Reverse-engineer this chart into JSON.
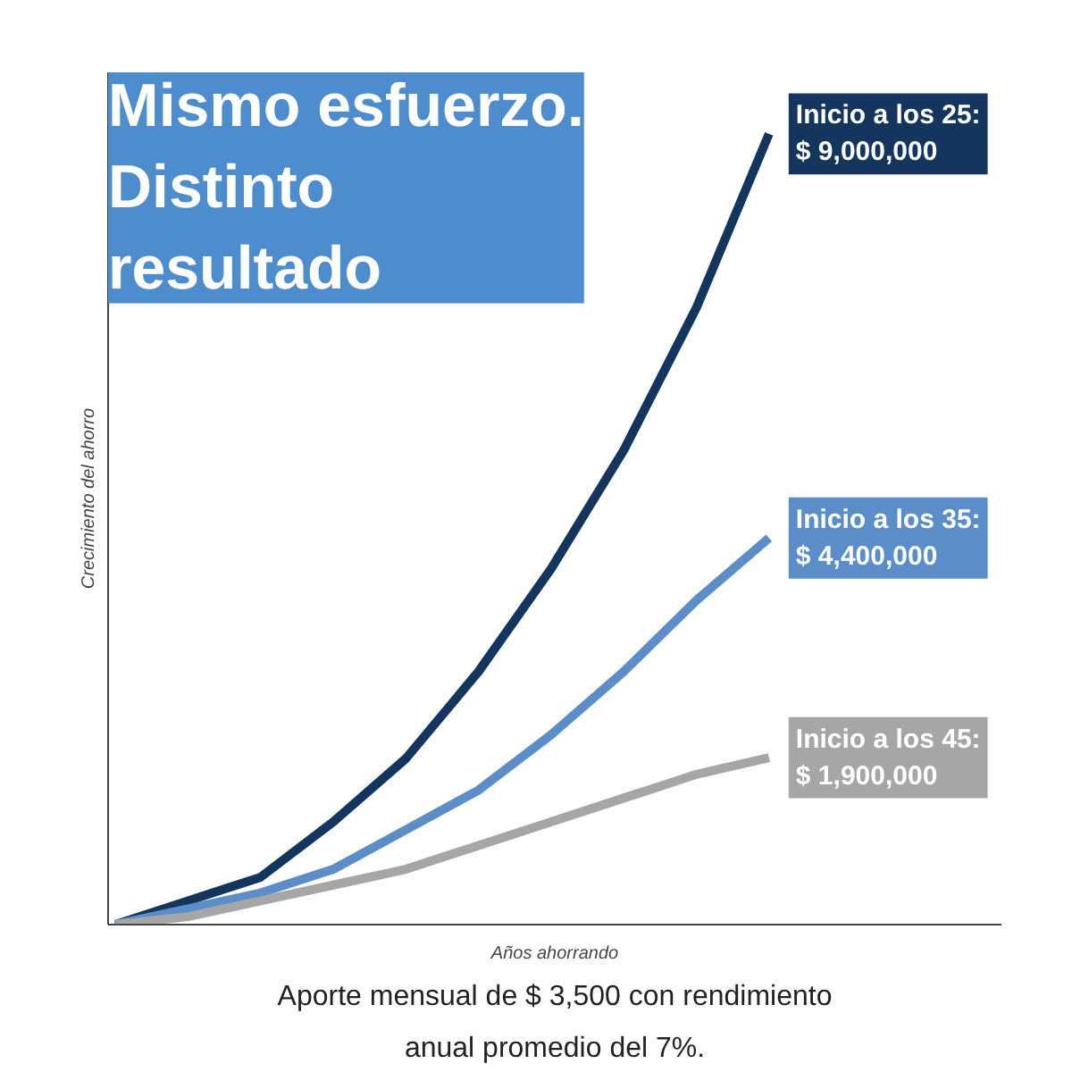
{
  "chart_data": {
    "type": "line",
    "title": "Mismo esfuerzo. Distinto resultado",
    "xlabel": "Años ahorrando",
    "ylabel": "Crecimiento del ahorro",
    "annotations": [
      "Aporte mensual de $ 3,500 con rendimiento anual promedio del 7%."
    ],
    "categories": [
      null,
      null,
      null,
      null,
      null,
      null,
      null,
      null,
      null,
      null
    ],
    "ylim": [
      0,
      9700000
    ],
    "marker": "none",
    "series": [
      {
        "name": "Inicio a los 25:",
        "color": "#14365e",
        "values": [
          0,
          270000,
          540000,
          1170000,
          1890000,
          2880000,
          4050000,
          5400000,
          7020000,
          9000000
        ],
        "value_labels": [
          null,
          null,
          null,
          null,
          null,
          null,
          null,
          null,
          null,
          "$ 9,000,000"
        ]
      },
      {
        "name": "Inicio a los 35:",
        "color": "#5b8ec9",
        "values": [
          0,
          180000,
          360000,
          630000,
          1080000,
          1530000,
          2160000,
          2880000,
          3690000,
          4400000
        ],
        "value_labels": [
          null,
          null,
          null,
          null,
          null,
          null,
          null,
          null,
          null,
          "$ 4,400,000"
        ]
      },
      {
        "name": "Inicio a los 45:",
        "color": "#a6a6a6",
        "values": [
          0,
          90000,
          270000,
          450000,
          630000,
          900000,
          1170000,
          1440000,
          1710000,
          1900000
        ],
        "value_labels": [
          null,
          null,
          null,
          null,
          null,
          null,
          null,
          null,
          null,
          "$ 1,900,000"
        ]
      }
    ]
  }
}
